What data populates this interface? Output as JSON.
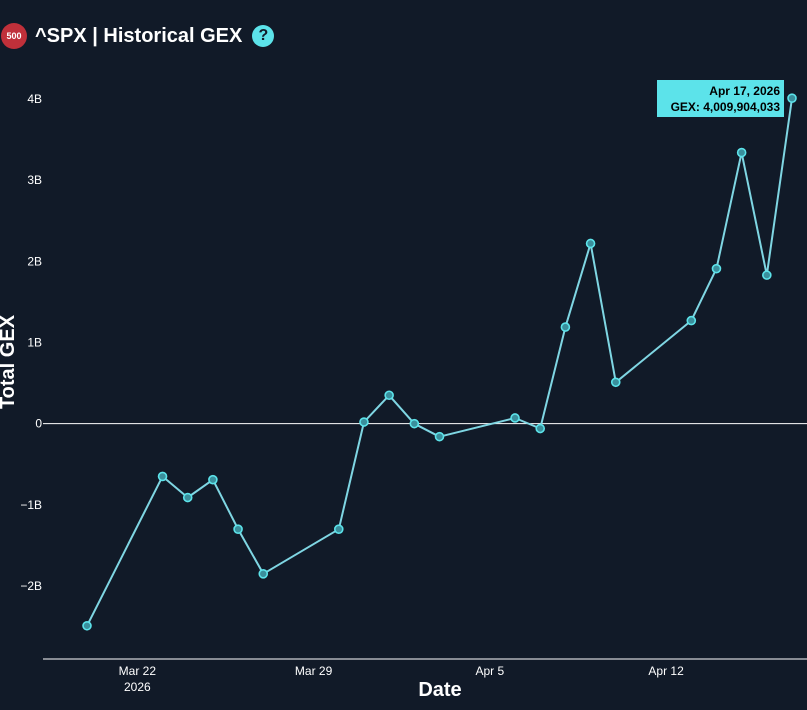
{
  "header": {
    "badge_text": "500",
    "title": "^SPX | Historical GEX",
    "help_glyph": "?"
  },
  "colors": {
    "background": "#111a28",
    "line": "#7fd6e3",
    "marker": "#5ce3ea",
    "axis": "#ffffff",
    "tooltip_bg": "#5ce3ea"
  },
  "tooltip": {
    "line1": "Apr 17, 2026",
    "line2": "GEX: 4,009,904,033"
  },
  "chart_data": {
    "type": "line",
    "title": "",
    "xlabel": "Date",
    "ylabel": "Total GEX",
    "ylim": [
      -2.95,
      4.1
    ],
    "xlim": [
      "2026-03-19",
      "2026-04-17"
    ],
    "y_ticks": [
      {
        "value": 4,
        "label": "4B"
      },
      {
        "value": 3,
        "label": "3B"
      },
      {
        "value": 2,
        "label": "2B"
      },
      {
        "value": 1,
        "label": "1B"
      },
      {
        "value": 0,
        "label": "0"
      },
      {
        "value": -1,
        "label": "−1B"
      },
      {
        "value": -2,
        "label": "−2B"
      }
    ],
    "x_ticks": [
      {
        "date": "2026-03-22",
        "label": "Mar 22",
        "sublabel": "2026"
      },
      {
        "date": "2026-03-29",
        "label": "Mar 29",
        "sublabel": ""
      },
      {
        "date": "2026-04-05",
        "label": "Apr 5",
        "sublabel": ""
      },
      {
        "date": "2026-04-12",
        "label": "Apr 12",
        "sublabel": ""
      }
    ],
    "series": [
      {
        "unit": "B",
        "points": [
          {
            "x": "2026-03-20",
            "y": -2.49
          },
          {
            "x": "2026-03-23",
            "y": -0.65
          },
          {
            "x": "2026-03-24",
            "y": -0.91
          },
          {
            "x": "2026-03-25",
            "y": -0.69
          },
          {
            "x": "2026-03-26",
            "y": -1.3
          },
          {
            "x": "2026-03-27",
            "y": -1.85
          },
          {
            "x": "2026-03-30",
            "y": -1.3
          },
          {
            "x": "2026-03-31",
            "y": 0.02
          },
          {
            "x": "2026-04-01",
            "y": 0.35
          },
          {
            "x": "2026-04-02",
            "y": 0.0
          },
          {
            "x": "2026-04-03",
            "y": -0.16
          },
          {
            "x": "2026-04-06",
            "y": 0.07
          },
          {
            "x": "2026-04-07",
            "y": -0.06
          },
          {
            "x": "2026-04-08",
            "y": 1.19
          },
          {
            "x": "2026-04-09",
            "y": 2.22
          },
          {
            "x": "2026-04-10",
            "y": 0.51
          },
          {
            "x": "2026-04-13",
            "y": 1.27
          },
          {
            "x": "2026-04-14",
            "y": 1.91
          },
          {
            "x": "2026-04-15",
            "y": 3.34
          },
          {
            "x": "2026-04-16",
            "y": 1.83
          },
          {
            "x": "2026-04-17",
            "y": 4.01
          }
        ]
      }
    ]
  }
}
